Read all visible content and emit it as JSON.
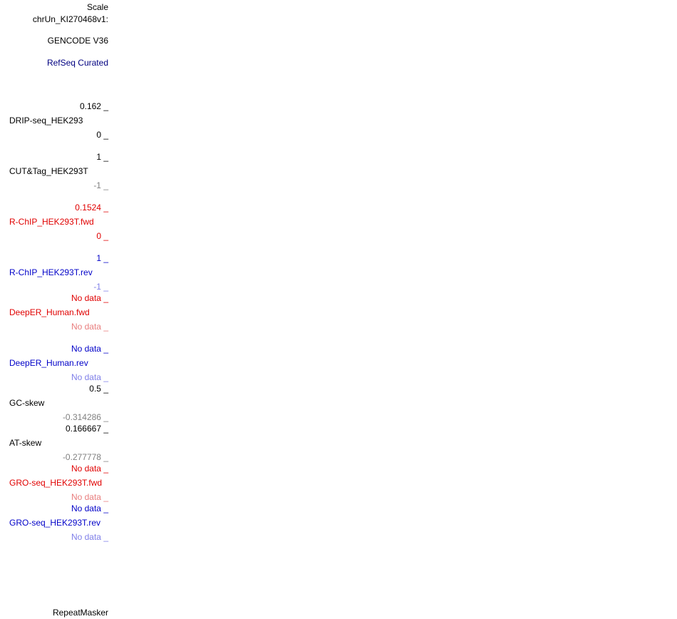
{
  "header": {
    "scale_label": "Scale",
    "chrom_label": "chrUn_KI270468v1:"
  },
  "annotation_tracks": {
    "gencode_label": "GENCODE V36",
    "refseq_label": "RefSeq Curated",
    "repeatmasker_label": "RepeatMasker"
  },
  "signal_tracks": [
    {
      "name": "DRIP-seq_HEK293",
      "max": "0.162 _",
      "min": "0 _"
    },
    {
      "name": "CUT&Tag_HEK293T",
      "max": "1 _",
      "min": "-1 _"
    },
    {
      "name": "R-ChIP_HEK293T.fwd",
      "max": "0.1524 _",
      "min": "0 _"
    },
    {
      "name": "R-ChIP_HEK293T.rev",
      "max": "1 _",
      "min": "-1 _"
    },
    {
      "name": "DeepER_Human.fwd",
      "max": "No data _",
      "min": "No data _"
    },
    {
      "name": "DeepER_Human.rev",
      "max": "No data _",
      "min": "No data _"
    },
    {
      "name": "GC-skew",
      "max": "0.5 _",
      "min": "-0.314286 _"
    },
    {
      "name": "AT-skew",
      "max": "0.166667 _",
      "min": "-0.277778 _"
    },
    {
      "name": "GRO-seq_HEK293T.fwd",
      "max": "No data _",
      "min": "No data _"
    },
    {
      "name": "GRO-seq_HEK293T.rev",
      "max": "No data _",
      "min": "No data _"
    }
  ],
  "colors": {
    "default": "#000000",
    "muted": "#808080",
    "refseq": "#000080",
    "fwd_strand": "#e00000",
    "fwd_strand_muted": "#e87d7d",
    "rev_strand": "#0000c8",
    "rev_strand_muted": "#7f7fe8"
  }
}
